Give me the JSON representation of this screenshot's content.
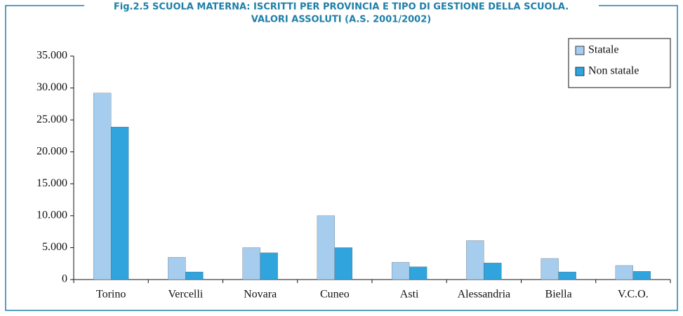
{
  "chart_data": {
    "type": "bar",
    "title": [
      "Fig.2.5 SCUOLA MATERNA: ISCRITTI PER PROVINCIA E TIPO DI GESTIONE DELLA SCUOLA.",
      "VALORI ASSOLUTI (A.S. 2001/2002)"
    ],
    "categories": [
      "Torino",
      "Vercelli",
      "Novara",
      "Cuneo",
      "Asti",
      "Alessandria",
      "Biella",
      "V.C.O."
    ],
    "series": [
      {
        "name": "Statale",
        "color": "#a6cdee",
        "values": [
          29200,
          3500,
          5000,
          10000,
          2700,
          6100,
          3300,
          2200
        ]
      },
      {
        "name": "Non statale",
        "color": "#2fa4dd",
        "values": [
          23900,
          1200,
          4200,
          5000,
          2000,
          2600,
          1200,
          1300
        ]
      }
    ],
    "ylim": [
      0,
      35000
    ],
    "yticks": [
      0,
      {
        "value": 5000,
        "label": "5.000"
      },
      {
        "value": 10000,
        "label": "10.000"
      },
      {
        "value": 15000,
        "label": "15.000"
      },
      {
        "value": 20000,
        "label": "20.000"
      },
      {
        "value": 25000,
        "label": "25.000"
      },
      {
        "value": 30000,
        "label": "30.000"
      },
      {
        "value": 35000,
        "label": "35.000"
      }
    ],
    "legend": "top-right"
  }
}
